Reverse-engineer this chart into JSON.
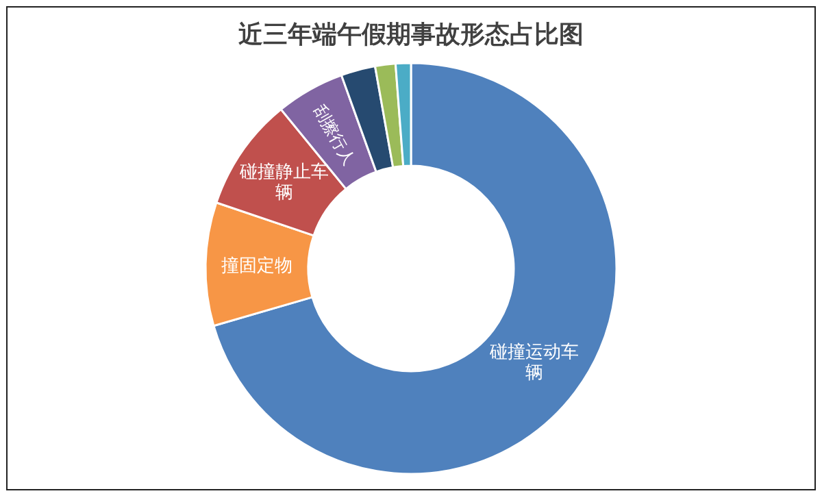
{
  "chart_data": {
    "type": "donut",
    "title": "近三年端午假期事故形态占比图",
    "categories": [
      "碰撞运动车辆",
      "撞固定物",
      "碰撞静止车辆",
      "刮擦行人",
      null,
      null,
      null
    ],
    "values": [
      70.5,
      9.7,
      8.9,
      5.4,
      2.7,
      1.6,
      1.2
    ],
    "colors": [
      "#4f81bd",
      "#f79646",
      "#c0504d",
      "#8064a2",
      "#264a70",
      "#9bbb59",
      "#4bacc6"
    ]
  }
}
